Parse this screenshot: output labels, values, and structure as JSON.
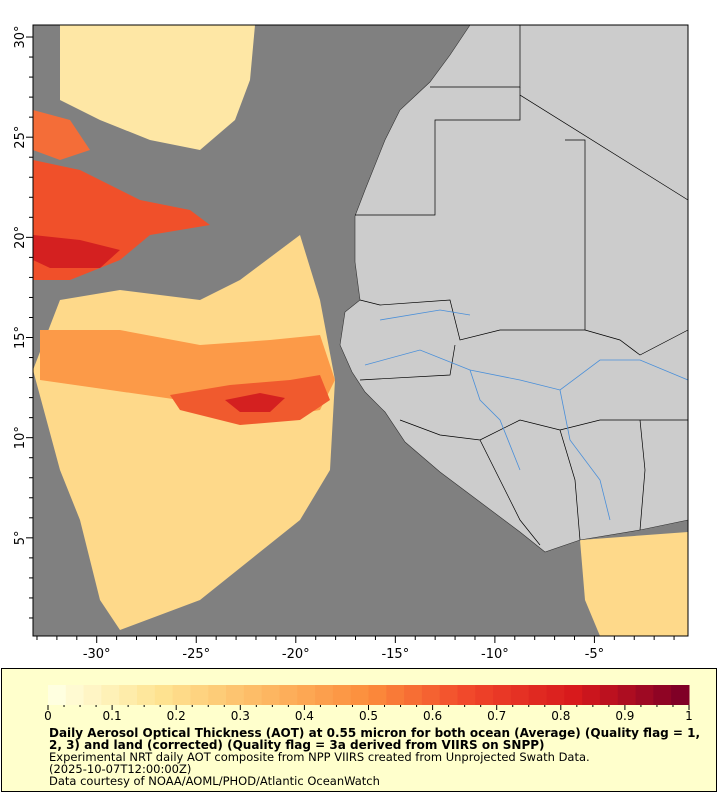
{
  "map": {
    "lon_range": [
      -33.2,
      -0.3
    ],
    "lat_range": [
      0.1,
      30.6
    ],
    "x_ticks": [
      "-30°",
      "-25°",
      "-20°",
      "-15°",
      "-10°",
      "-5°"
    ],
    "y_ticks": [
      "5°",
      "10°",
      "15°",
      "20°",
      "25°",
      "30°"
    ],
    "colors": {
      "ocean": "#808080",
      "land": "#cccccc",
      "borders": "#000000",
      "rivers": "#4a8fd9"
    }
  },
  "legend": {
    "colorbar_ticks": [
      "0",
      "0.1",
      "0.2",
      "0.3",
      "0.4",
      "0.5",
      "0.6",
      "0.7",
      "0.8",
      "0.9",
      "1"
    ],
    "colorbar_range": [
      0,
      1
    ],
    "colorbar_colors": [
      "#ffffe0",
      "#fee391",
      "#fdb863",
      "#fc8d3c",
      "#f0452a",
      "#d7191c",
      "#800026"
    ],
    "title_line1": "Daily Aerosol Optical Thickness (AOT) at 0.55 micron for both ocean (Average) (Quality flag = 1,",
    "title_line2": "2, 3) and land (corrected) (Quality flag = 3a derived from VIIRS on SNPP)",
    "subtitle": "Experimental NRT daily AOT composite from NPP VIIRS created from Unprojected Swath Data.",
    "time": "(2025-10-07T12:00:00Z)",
    "credit": "Data courtesy of NOAA/AOML/PHOD/Atlantic OceanWatch"
  }
}
